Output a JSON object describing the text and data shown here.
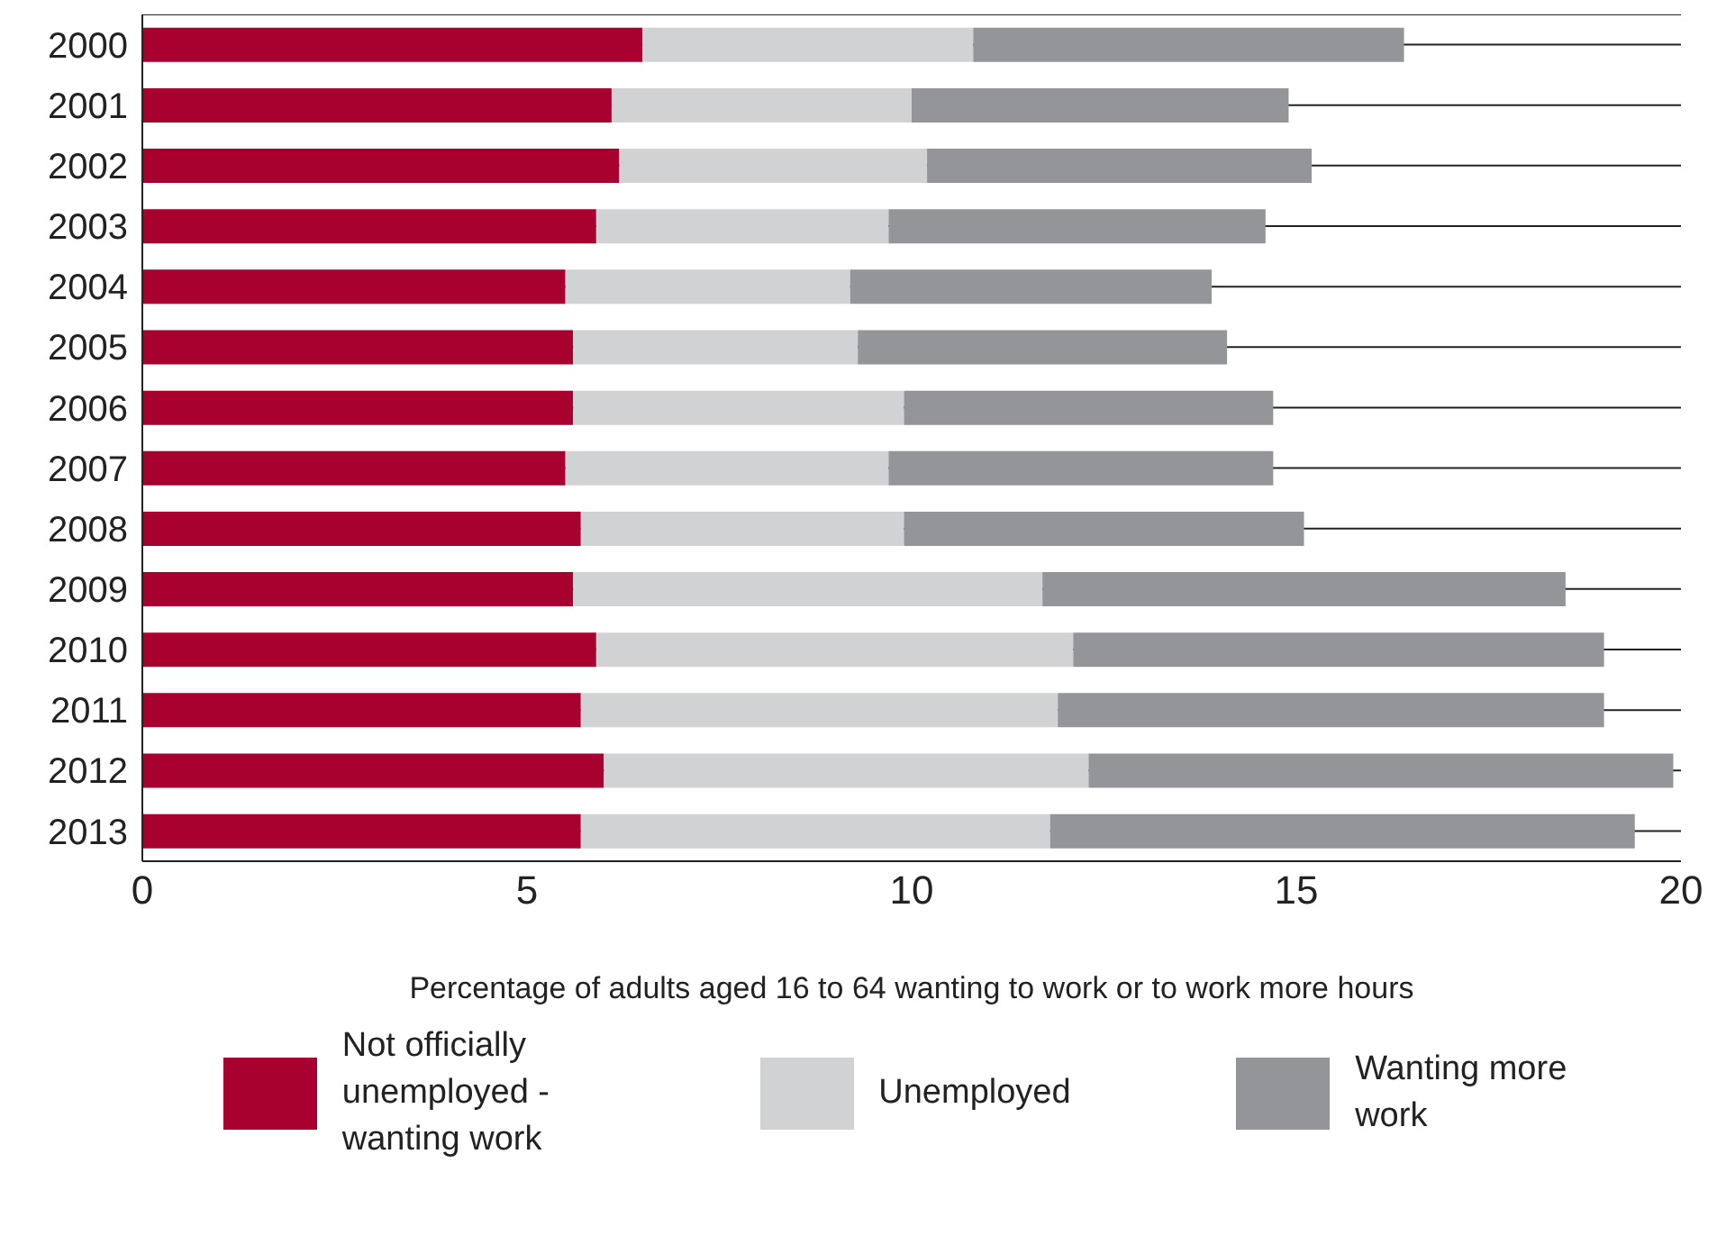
{
  "chart_data": {
    "type": "bar",
    "orientation": "horizontal",
    "stacked": true,
    "xlabel": "Percentage of adults aged 16 to 64 wanting to work or to work more hours",
    "categories": [
      "2000",
      "2001",
      "2002",
      "2003",
      "2004",
      "2005",
      "2006",
      "2007",
      "2008",
      "2009",
      "2010",
      "2011",
      "2012",
      "2013"
    ],
    "series": [
      {
        "name": "Not officially unemployed - wanting work",
        "color": "#a8002f",
        "values": [
          6.5,
          6.1,
          6.2,
          5.9,
          5.5,
          5.6,
          5.6,
          5.5,
          5.7,
          5.6,
          5.9,
          5.7,
          6.0,
          5.7
        ]
      },
      {
        "name": "Unemployed",
        "color": "#d1d2d4",
        "values": [
          4.3,
          3.9,
          4.0,
          3.8,
          3.7,
          3.7,
          4.3,
          4.2,
          4.2,
          6.1,
          6.2,
          6.2,
          6.3,
          6.1
        ]
      },
      {
        "name": "Wanting more work",
        "color": "#939598",
        "values": [
          5.6,
          4.9,
          5.0,
          4.9,
          4.7,
          4.8,
          4.8,
          5.0,
          5.2,
          6.8,
          6.9,
          7.1,
          7.6,
          7.6
        ]
      }
    ],
    "xlim": [
      0,
      20
    ],
    "xticks": [
      0,
      5,
      10,
      15,
      20
    ],
    "grid": "y",
    "legend": "bottom"
  }
}
